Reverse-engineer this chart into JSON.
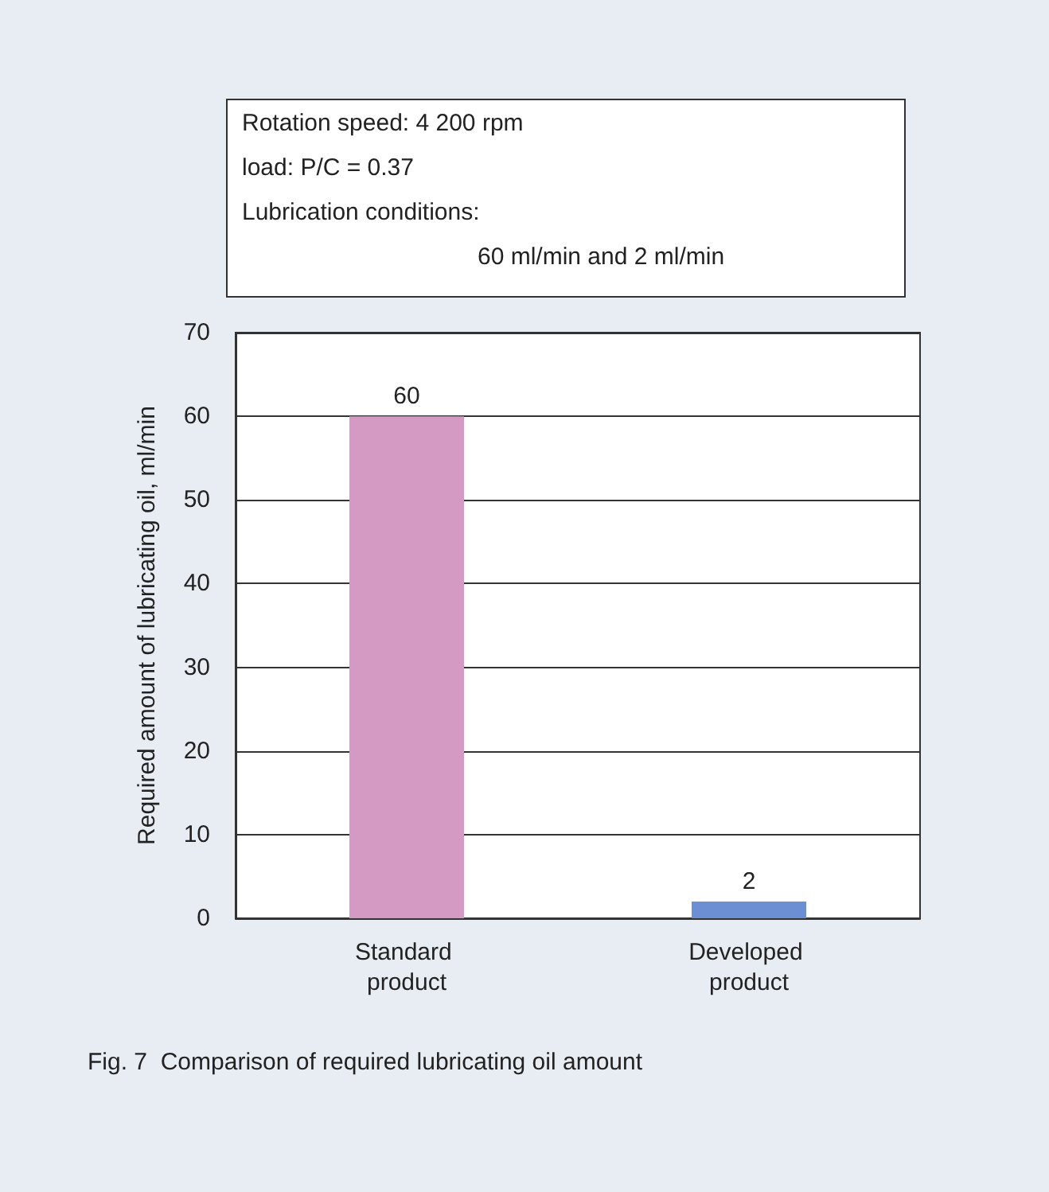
{
  "chart_data": {
    "type": "bar",
    "title": "Fig. 7  Comparison of required lubricating oil amount",
    "ylabel": "Required amount of lubricating oil, ml/min",
    "categories": [
      "Standard product",
      "Developed product"
    ],
    "values": [
      60,
      2
    ],
    "colors": [
      "#d49ac4",
      "#6b8fd2"
    ],
    "ylim": [
      0,
      70
    ],
    "yticks": [
      0,
      10,
      20,
      30,
      40,
      50,
      60,
      70
    ],
    "grid": "y",
    "data_labels": true,
    "annotations": [
      "Rotation speed: 4 200 rpm",
      "load: P/C = 0.37",
      "Lubrication conditions:",
      "60 ml/min and 2 ml/min"
    ]
  }
}
